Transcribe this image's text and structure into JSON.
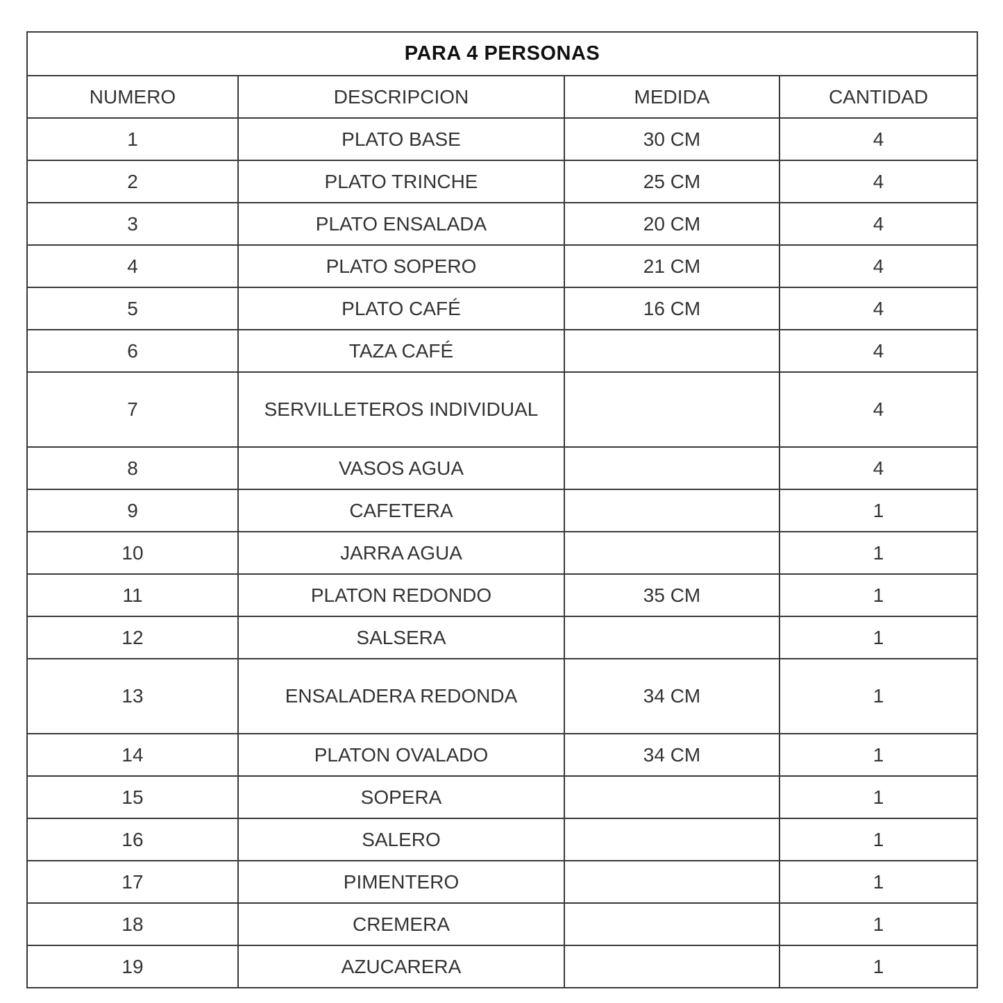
{
  "table": {
    "title": "PARA 4 PERSONAS",
    "headers": [
      "NUMERO",
      "DESCRIPCION",
      "MEDIDA",
      "CANTIDAD"
    ],
    "rows": [
      {
        "numero": "1",
        "descripcion": "PLATO BASE",
        "medida": "30 CM",
        "cantidad": "4"
      },
      {
        "numero": "2",
        "descripcion": "PLATO TRINCHE",
        "medida": "25 CM",
        "cantidad": "4"
      },
      {
        "numero": "3",
        "descripcion": "PLATO ENSALADA",
        "medida": "20 CM",
        "cantidad": "4"
      },
      {
        "numero": "4",
        "descripcion": "PLATO SOPERO",
        "medida": "21 CM",
        "cantidad": "4"
      },
      {
        "numero": "5",
        "descripcion": "PLATO CAFÉ",
        "medida": "16 CM",
        "cantidad": "4"
      },
      {
        "numero": "6",
        "descripcion": "TAZA CAFÉ",
        "medida": "",
        "cantidad": "4"
      },
      {
        "numero": "7",
        "descripcion": "SERVILLETEROS INDIVIDUAL",
        "medida": "",
        "cantidad": "4"
      },
      {
        "numero": "8",
        "descripcion": "VASOS AGUA",
        "medida": "",
        "cantidad": "4"
      },
      {
        "numero": "9",
        "descripcion": "CAFETERA",
        "medida": "",
        "cantidad": "1"
      },
      {
        "numero": "10",
        "descripcion": "JARRA AGUA",
        "medida": "",
        "cantidad": "1"
      },
      {
        "numero": "11",
        "descripcion": "PLATON REDONDO",
        "medida": "35 CM",
        "cantidad": "1"
      },
      {
        "numero": "12",
        "descripcion": "SALSERA",
        "medida": "",
        "cantidad": "1"
      },
      {
        "numero": "13",
        "descripcion": "ENSALADERA REDONDA",
        "medida": "34 CM",
        "cantidad": "1"
      },
      {
        "numero": "14",
        "descripcion": "PLATON OVALADO",
        "medida": "34 CM",
        "cantidad": "1"
      },
      {
        "numero": "15",
        "descripcion": "SOPERA",
        "medida": "",
        "cantidad": "1"
      },
      {
        "numero": "16",
        "descripcion": "SALERO",
        "medida": "",
        "cantidad": "1"
      },
      {
        "numero": "17",
        "descripcion": "PIMENTERO",
        "medida": "",
        "cantidad": "1"
      },
      {
        "numero": "18",
        "descripcion": "CREMERA",
        "medida": "",
        "cantidad": "1"
      },
      {
        "numero": "19",
        "descripcion": "AZUCARERA",
        "medida": "",
        "cantidad": "1"
      }
    ]
  }
}
